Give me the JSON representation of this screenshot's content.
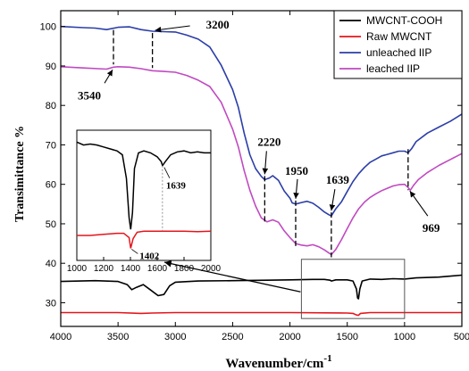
{
  "chart_data": {
    "type": "line",
    "xlabel": "Wavenumber/cm",
    "xlabel_sup": "-1",
    "ylabel": "Transimittance %",
    "x_reversed": true,
    "xlim": [
      4000,
      500
    ],
    "ylim": [
      24,
      104
    ],
    "x_ticks": [
      4000,
      3500,
      3000,
      2500,
      2000,
      1500,
      1000,
      500
    ],
    "y_ticks": [
      30,
      40,
      50,
      60,
      70,
      80,
      90,
      100
    ],
    "legend_position": "top-right",
    "series": [
      {
        "name": "MWCNT-COOH",
        "color": "#000000",
        "points": [
          [
            4000,
            35.4
          ],
          [
            3700,
            35.6
          ],
          [
            3500,
            35.4
          ],
          [
            3420,
            34.6
          ],
          [
            3380,
            33.3
          ],
          [
            3340,
            33.9
          ],
          [
            3280,
            34.6
          ],
          [
            3220,
            33.3
          ],
          [
            3150,
            31.8
          ],
          [
            3100,
            32.1
          ],
          [
            3050,
            34.3
          ],
          [
            3000,
            35.2
          ],
          [
            2800,
            35.5
          ],
          [
            2500,
            35.6
          ],
          [
            2200,
            35.7
          ],
          [
            2000,
            35.8
          ],
          [
            1800,
            35.9
          ],
          [
            1700,
            35.9
          ],
          [
            1650,
            35.7
          ],
          [
            1639,
            35.5
          ],
          [
            1600,
            35.8
          ],
          [
            1500,
            35.8
          ],
          [
            1450,
            35.5
          ],
          [
            1420,
            33.5
          ],
          [
            1410,
            31.2
          ],
          [
            1402,
            31.0
          ],
          [
            1390,
            33.5
          ],
          [
            1370,
            35.5
          ],
          [
            1300,
            36.0
          ],
          [
            1200,
            35.9
          ],
          [
            1100,
            36.1
          ],
          [
            1000,
            36.0
          ],
          [
            900,
            36.3
          ],
          [
            700,
            36.5
          ],
          [
            500,
            37.0
          ]
        ]
      },
      {
        "name": "Raw MWCNT",
        "color": "#e4151b",
        "points": [
          [
            4000,
            27.5
          ],
          [
            3500,
            27.5
          ],
          [
            3300,
            27.3
          ],
          [
            3200,
            27.4
          ],
          [
            3000,
            27.5
          ],
          [
            2500,
            27.5
          ],
          [
            2000,
            27.5
          ],
          [
            1500,
            27.4
          ],
          [
            1450,
            27.3
          ],
          [
            1420,
            26.9
          ],
          [
            1402,
            26.8
          ],
          [
            1385,
            27.3
          ],
          [
            1300,
            27.5
          ],
          [
            1000,
            27.5
          ],
          [
            500,
            27.5
          ]
        ]
      },
      {
        "name": "unleached IIP",
        "color": "#2c3ea8",
        "points": [
          [
            4000,
            100.0
          ],
          [
            3800,
            99.7
          ],
          [
            3700,
            99.6
          ],
          [
            3600,
            99.2
          ],
          [
            3500,
            99.8
          ],
          [
            3400,
            99.9
          ],
          [
            3300,
            99.2
          ],
          [
            3200,
            98.8
          ],
          [
            3100,
            98.7
          ],
          [
            3000,
            98.6
          ],
          [
            2900,
            97.8
          ],
          [
            2800,
            96.8
          ],
          [
            2700,
            94.8
          ],
          [
            2600,
            90.2
          ],
          [
            2500,
            84.0
          ],
          [
            2450,
            79.5
          ],
          [
            2400,
            73.0
          ],
          [
            2350,
            67.5
          ],
          [
            2300,
            64.0
          ],
          [
            2250,
            62.0
          ],
          [
            2220,
            61.2
          ],
          [
            2180,
            61.6
          ],
          [
            2150,
            62.2
          ],
          [
            2100,
            61.0
          ],
          [
            2050,
            58.3
          ],
          [
            2000,
            56.5
          ],
          [
            1980,
            55.3
          ],
          [
            1950,
            55.0
          ],
          [
            1900,
            55.4
          ],
          [
            1850,
            55.7
          ],
          [
            1800,
            55.2
          ],
          [
            1750,
            54.2
          ],
          [
            1700,
            53.0
          ],
          [
            1660,
            52.3
          ],
          [
            1639,
            52.0
          ],
          [
            1600,
            53.8
          ],
          [
            1550,
            55.6
          ],
          [
            1500,
            58.2
          ],
          [
            1450,
            60.7
          ],
          [
            1400,
            62.7
          ],
          [
            1350,
            64.3
          ],
          [
            1300,
            65.6
          ],
          [
            1250,
            66.4
          ],
          [
            1200,
            67.2
          ],
          [
            1150,
            67.6
          ],
          [
            1100,
            68.0
          ],
          [
            1050,
            68.4
          ],
          [
            1000,
            68.4
          ],
          [
            969,
            68.0
          ],
          [
            940,
            69.0
          ],
          [
            900,
            70.8
          ],
          [
            800,
            73.0
          ],
          [
            700,
            74.5
          ],
          [
            600,
            76.0
          ],
          [
            500,
            77.8
          ]
        ]
      },
      {
        "name": "leached  IIP",
        "color": "#c04ac1",
        "points": [
          [
            4000,
            89.8
          ],
          [
            3800,
            89.5
          ],
          [
            3600,
            89.2
          ],
          [
            3540,
            89.7
          ],
          [
            3500,
            89.8
          ],
          [
            3400,
            89.7
          ],
          [
            3300,
            89.3
          ],
          [
            3200,
            88.8
          ],
          [
            3100,
            88.6
          ],
          [
            3000,
            88.4
          ],
          [
            2900,
            87.6
          ],
          [
            2800,
            86.4
          ],
          [
            2700,
            84.8
          ],
          [
            2600,
            80.8
          ],
          [
            2500,
            74.0
          ],
          [
            2450,
            69.5
          ],
          [
            2400,
            63.5
          ],
          [
            2350,
            58.5
          ],
          [
            2300,
            54.5
          ],
          [
            2250,
            51.5
          ],
          [
            2200,
            50.5
          ],
          [
            2150,
            51.0
          ],
          [
            2100,
            50.4
          ],
          [
            2050,
            48.2
          ],
          [
            2000,
            46.5
          ],
          [
            1950,
            45.0
          ],
          [
            1900,
            44.6
          ],
          [
            1850,
            44.4
          ],
          [
            1800,
            44.7
          ],
          [
            1750,
            44.2
          ],
          [
            1700,
            43.4
          ],
          [
            1660,
            42.6
          ],
          [
            1639,
            42.2
          ],
          [
            1600,
            43.5
          ],
          [
            1550,
            46.0
          ],
          [
            1500,
            48.8
          ],
          [
            1450,
            51.5
          ],
          [
            1400,
            53.8
          ],
          [
            1350,
            55.5
          ],
          [
            1300,
            56.7
          ],
          [
            1250,
            57.6
          ],
          [
            1200,
            58.4
          ],
          [
            1150,
            59.0
          ],
          [
            1100,
            59.6
          ],
          [
            1050,
            59.9
          ],
          [
            1000,
            60.0
          ],
          [
            969,
            59.2
          ],
          [
            950,
            58.5
          ],
          [
            920,
            59.8
          ],
          [
            880,
            61.2
          ],
          [
            800,
            63.0
          ],
          [
            700,
            64.8
          ],
          [
            600,
            66.3
          ],
          [
            500,
            67.8
          ]
        ]
      }
    ],
    "annotations": [
      {
        "text": "3200",
        "arrow_x": 3200
      },
      {
        "text": "3540",
        "arrow_x": 3540
      },
      {
        "text": "2220",
        "arrow_x": 2220
      },
      {
        "text": "1950",
        "arrow_x": 1950
      },
      {
        "text": "1639",
        "arrow_x": 1639
      },
      {
        "text": "969",
        "arrow_x": 969
      }
    ],
    "inset": {
      "xlim": [
        1000,
        2000
      ],
      "x_ticks": [
        1000,
        1200,
        1400,
        1600,
        1800,
        2000
      ],
      "annotations": [
        {
          "text": "1639"
        },
        {
          "text": "1402"
        }
      ],
      "black_points": [
        [
          1000,
          97
        ],
        [
          1050,
          94
        ],
        [
          1100,
          95
        ],
        [
          1150,
          94
        ],
        [
          1200,
          92
        ],
        [
          1250,
          90
        ],
        [
          1300,
          88
        ],
        [
          1340,
          84
        ],
        [
          1370,
          60
        ],
        [
          1390,
          20
        ],
        [
          1402,
          8
        ],
        [
          1415,
          25
        ],
        [
          1430,
          70
        ],
        [
          1460,
          86
        ],
        [
          1500,
          88
        ],
        [
          1550,
          86
        ],
        [
          1600,
          82
        ],
        [
          1630,
          77
        ],
        [
          1639,
          73
        ],
        [
          1660,
          77
        ],
        [
          1700,
          84
        ],
        [
          1750,
          87
        ],
        [
          1800,
          88
        ],
        [
          1850,
          86
        ],
        [
          1900,
          87
        ],
        [
          1950,
          86
        ],
        [
          2000,
          86
        ]
      ],
      "red_points": [
        [
          1000,
          0
        ],
        [
          1100,
          0
        ],
        [
          1200,
          1
        ],
        [
          1300,
          2
        ],
        [
          1350,
          2
        ],
        [
          1390,
          -2
        ],
        [
          1402,
          -12
        ],
        [
          1420,
          -3
        ],
        [
          1450,
          3
        ],
        [
          1500,
          4
        ],
        [
          1600,
          4
        ],
        [
          1700,
          4
        ],
        [
          1800,
          4
        ],
        [
          1900,
          3.5
        ],
        [
          2000,
          4
        ]
      ]
    }
  }
}
